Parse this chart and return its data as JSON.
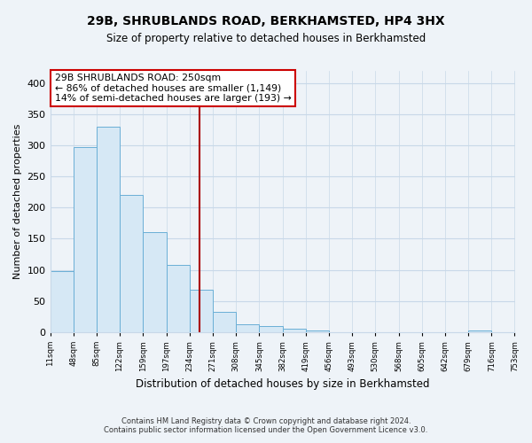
{
  "title": "29B, SHRUBLANDS ROAD, BERKHAMSTED, HP4 3HX",
  "subtitle": "Size of property relative to detached houses in Berkhamsted",
  "xlabel": "Distribution of detached houses by size in Berkhamsted",
  "ylabel": "Number of detached properties",
  "bin_edges": [
    11,
    48,
    85,
    122,
    159,
    197,
    234,
    271,
    308,
    345,
    382,
    419,
    456,
    493,
    530,
    568,
    605,
    642,
    679,
    716,
    753
  ],
  "bin_labels": [
    "11sqm",
    "48sqm",
    "85sqm",
    "122sqm",
    "159sqm",
    "197sqm",
    "234sqm",
    "271sqm",
    "308sqm",
    "345sqm",
    "382sqm",
    "419sqm",
    "456sqm",
    "493sqm",
    "530sqm",
    "568sqm",
    "605sqm",
    "642sqm",
    "679sqm",
    "716sqm",
    "753sqm"
  ],
  "bar_heights": [
    98,
    298,
    330,
    220,
    160,
    108,
    68,
    33,
    13,
    10,
    5,
    2,
    0,
    0,
    0,
    0,
    0,
    0,
    2,
    0
  ],
  "bar_color": "#d6e8f5",
  "bar_edge_color": "#6aafd6",
  "property_size": 250,
  "property_line_color": "#aa0000",
  "annotation_title": "29B SHRUBLANDS ROAD: 250sqm",
  "annotation_line1": "← 86% of detached houses are smaller (1,149)",
  "annotation_line2": "14% of semi-detached houses are larger (193) →",
  "annotation_box_facecolor": "#ffffff",
  "annotation_box_edgecolor": "#cc0000",
  "bg_color": "#eef3f8",
  "grid_color": "#c8d8e8",
  "ylim": [
    0,
    420
  ],
  "yticks": [
    0,
    50,
    100,
    150,
    200,
    250,
    300,
    350,
    400
  ],
  "footnote1": "Contains HM Land Registry data © Crown copyright and database right 2024.",
  "footnote2": "Contains public sector information licensed under the Open Government Licence v3.0."
}
